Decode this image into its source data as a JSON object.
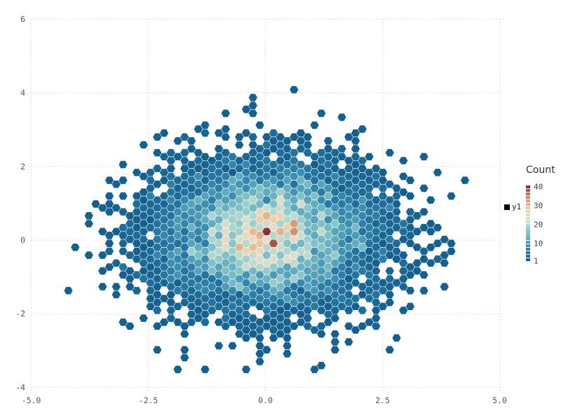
{
  "chart_data": {
    "type": "hexbin",
    "title": "",
    "x_axis": {
      "tick_labels": [
        "-5.0",
        "-2.5",
        "0.0",
        "2.5",
        "5.0"
      ],
      "tick_values": [
        -5,
        -2.5,
        0,
        2.5,
        5
      ],
      "range": [
        -5.35,
        5.45
      ]
    },
    "y_axis": {
      "tick_labels": [
        "6",
        "4",
        "2",
        "0",
        "-2",
        "-4"
      ],
      "tick_values": [
        6,
        4,
        2,
        0,
        -2,
        -4
      ],
      "range": [
        -4.4,
        6.05
      ]
    },
    "grid": {
      "style": "dotted",
      "color": "#cfcfda"
    },
    "colorbar": {
      "title": "Count",
      "tick_labels": [
        "40",
        "30",
        "20",
        "10",
        "1"
      ],
      "tick_values": [
        40,
        30,
        20,
        10,
        1
      ],
      "min": 1,
      "max": 40,
      "segments": 22,
      "palette": [
        [
          0.0,
          "#15608f"
        ],
        [
          0.12,
          "#2a7da6"
        ],
        [
          0.24,
          "#4f9fba"
        ],
        [
          0.36,
          "#7fc0c6"
        ],
        [
          0.46,
          "#abd3cf"
        ],
        [
          0.54,
          "#cfdccd"
        ],
        [
          0.62,
          "#e5ddc6"
        ],
        [
          0.7,
          "#eacfa9"
        ],
        [
          0.78,
          "#deb08a"
        ],
        [
          0.86,
          "#cd8a68"
        ],
        [
          0.93,
          "#b4604a"
        ],
        [
          1.0,
          "#8a3030"
        ]
      ]
    },
    "legend": {
      "label": "y1",
      "marker_color": "#000000"
    },
    "hexbin": {
      "hex_radius_px": 6.5,
      "gap_scale": 0.94,
      "seed": 1337,
      "density_model": {
        "center_x": 0.03,
        "center_y": 0.1,
        "sigma_x": 1.22,
        "sigma_y": 1.0,
        "peak_count": 27,
        "shape_exponent": 2.0,
        "count_range": [
          1,
          40
        ]
      },
      "hot_bins": [
        [
          0.05,
          0.22,
          40
        ],
        [
          0.18,
          -0.02,
          38
        ],
        [
          0.62,
          0.45,
          33
        ],
        [
          -0.3,
          -0.18,
          34
        ],
        [
          -0.22,
          -0.3,
          30
        ]
      ],
      "outlier_bins": [
        [
          0.64,
          4.02,
          1
        ],
        [
          -0.34,
          3.57,
          1
        ],
        [
          1.18,
          3.36,
          1
        ],
        [
          2.13,
          3.12,
          1
        ],
        [
          1.86,
          2.88,
          1
        ],
        [
          -2.62,
          2.55,
          1
        ],
        [
          -3.3,
          1.6,
          1
        ],
        [
          -3.5,
          0.85,
          1
        ],
        [
          -4.02,
          -0.3,
          1
        ],
        [
          -4.15,
          -1.47,
          1
        ],
        [
          3.79,
          -0.32,
          1
        ],
        [
          3.3,
          0.26,
          1
        ],
        [
          3.51,
          1.03,
          1
        ],
        [
          3.48,
          -0.66,
          1
        ],
        [
          2.91,
          -0.66,
          1
        ],
        [
          2.6,
          -2.9,
          1
        ],
        [
          -2.9,
          -2.3,
          1
        ],
        [
          -1.93,
          -3.56,
          1
        ],
        [
          -0.46,
          -3.54,
          1
        ],
        [
          1.15,
          -3.44,
          1
        ],
        [
          -0.16,
          -3.35,
          1
        ],
        [
          -1.33,
          -3.42,
          1
        ]
      ]
    }
  }
}
